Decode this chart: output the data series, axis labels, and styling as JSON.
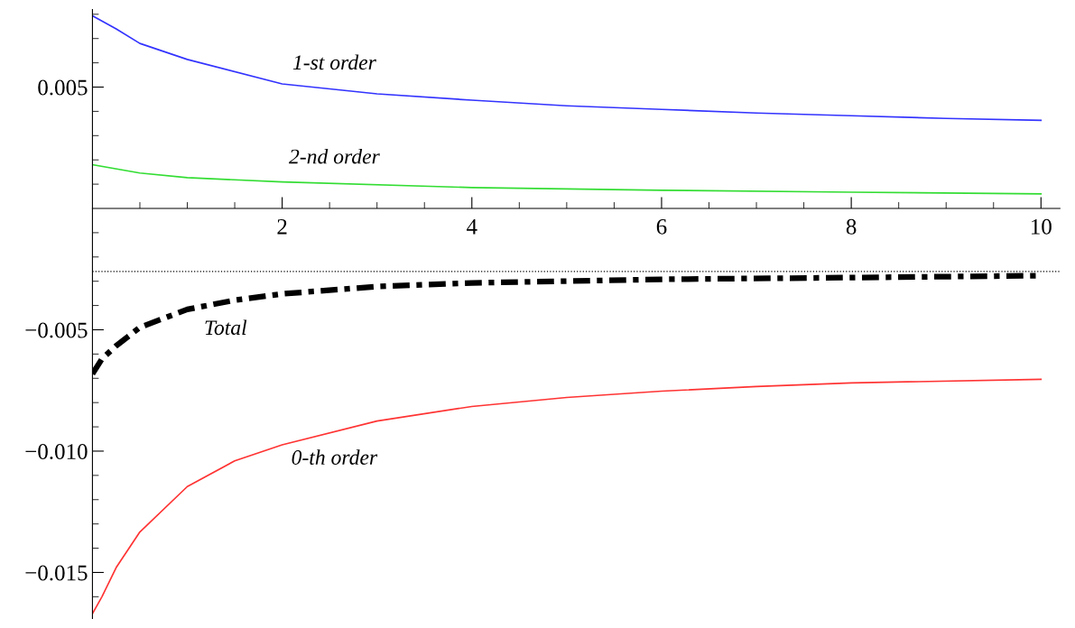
{
  "chart_data": {
    "type": "line",
    "xlim": [
      0,
      10.2
    ],
    "ylim": [
      -0.0169,
      0.0082
    ],
    "xticks": [
      {
        "value": 0.5,
        "label": null
      },
      {
        "value": 1,
        "label": null
      },
      {
        "value": 1.5,
        "label": null
      },
      2,
      {
        "value": 2.5,
        "label": null
      },
      {
        "value": 3,
        "label": null
      },
      {
        "value": 3.5,
        "label": null
      },
      4,
      {
        "value": 4.5,
        "label": null
      },
      {
        "value": 5,
        "label": null
      },
      {
        "value": 5.5,
        "label": null
      },
      6,
      {
        "value": 6.5,
        "label": null
      },
      {
        "value": 7,
        "label": null
      },
      {
        "value": 7.5,
        "label": null
      },
      8,
      {
        "value": 8.5,
        "label": null
      },
      {
        "value": 9,
        "label": null
      },
      {
        "value": 9.5,
        "label": null
      },
      10
    ],
    "yticks": [
      {
        "value": -0.016,
        "label": null
      },
      {
        "value": -0.015,
        "label": "−0.015"
      },
      {
        "value": -0.014,
        "label": null
      },
      {
        "value": -0.013,
        "label": null
      },
      {
        "value": -0.012,
        "label": null
      },
      {
        "value": -0.011,
        "label": null
      },
      {
        "value": -0.01,
        "label": "−0.010"
      },
      {
        "value": -0.009,
        "label": null
      },
      {
        "value": -0.008,
        "label": null
      },
      {
        "value": -0.007,
        "label": null
      },
      {
        "value": -0.006,
        "label": null
      },
      {
        "value": -0.005,
        "label": "−0.005"
      },
      {
        "value": -0.004,
        "label": null
      },
      {
        "value": -0.003,
        "label": null
      },
      {
        "value": -0.002,
        "label": null
      },
      {
        "value": -0.001,
        "label": null
      },
      {
        "value": 0.001,
        "label": null
      },
      {
        "value": 0.002,
        "label": null
      },
      {
        "value": 0.003,
        "label": null
      },
      {
        "value": 0.004,
        "label": null
      },
      {
        "value": 0.005,
        "label": "0.005"
      },
      {
        "value": 0.006,
        "label": null
      },
      {
        "value": 0.007,
        "label": null
      },
      {
        "value": 0.008,
        "label": null
      }
    ],
    "grid": false,
    "legend": false,
    "marker": "none",
    "series": [
      {
        "name": "1-st order",
        "color": "#3333ff",
        "line_style": "solid",
        "x": [
          0,
          0.25,
          0.5,
          1,
          2,
          3,
          4,
          5,
          6,
          7,
          8,
          9,
          10
        ],
        "values": [
          0.00794,
          0.0074,
          0.0068,
          0.00614,
          0.00513,
          0.00472,
          0.00446,
          0.00423,
          0.00408,
          0.00393,
          0.00382,
          0.00371,
          0.00363
        ]
      },
      {
        "name": "2-nd order",
        "color": "#33dd33",
        "line_style": "solid",
        "x": [
          0,
          0.5,
          1,
          2,
          4,
          6,
          8,
          10
        ],
        "values": [
          0.0018,
          0.00146,
          0.00127,
          0.00109,
          0.00086,
          0.00075,
          0.00067,
          0.0006
        ]
      },
      {
        "name": "0-th order",
        "color": "#ff3333",
        "line_style": "solid",
        "x": [
          0,
          0.1,
          0.25,
          0.5,
          1,
          1.5,
          2,
          3,
          4,
          5,
          6,
          7,
          8,
          10
        ],
        "values": [
          -0.0167,
          -0.016,
          -0.0148,
          -0.01333,
          -0.01146,
          -0.0104,
          -0.00974,
          -0.00876,
          -0.00816,
          -0.00779,
          -0.00753,
          -0.00734,
          -0.00719,
          -0.00704
        ]
      },
      {
        "name": "Total",
        "color": "#000000",
        "line_style": "dashdot",
        "x": [
          0,
          0.1,
          0.25,
          0.5,
          1,
          1.5,
          2,
          3,
          4,
          6,
          8,
          10
        ],
        "values": [
          -0.00682,
          -0.0062,
          -0.00566,
          -0.0049,
          -0.00416,
          -0.00378,
          -0.00352,
          -0.00322,
          -0.00307,
          -0.00292,
          -0.00285,
          -0.00277
        ]
      }
    ],
    "ref_lines": [
      {
        "axis": "y",
        "value": -0.0026,
        "color": "#000000",
        "line_style": "dotted"
      }
    ]
  }
}
